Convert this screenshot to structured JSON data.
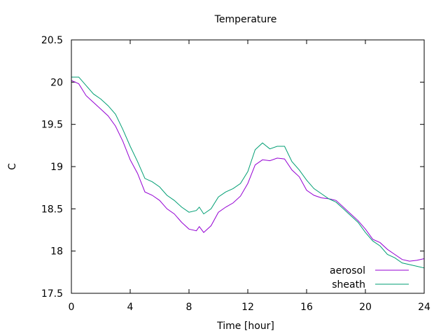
{
  "chart_data": {
    "type": "line",
    "title": "Temperature",
    "xlabel": "Time [hour]",
    "ylabel": "C",
    "xlim": [
      0,
      24
    ],
    "ylim": [
      17.5,
      20.5
    ],
    "xticks": [
      0,
      4,
      8,
      12,
      16,
      20,
      24
    ],
    "yticks": [
      17.5,
      18,
      18.5,
      19,
      19.5,
      20,
      20.5
    ],
    "xtick_labels": [
      "0",
      "4",
      "8",
      "12",
      "16",
      "20",
      "24"
    ],
    "ytick_labels": [
      "17.5",
      "18",
      "18.5",
      "19",
      "19.5",
      "20",
      "20.5"
    ],
    "grid": false,
    "legend": "bottom-right",
    "x": [
      0,
      0.5,
      1,
      1.5,
      2,
      2.5,
      3,
      3.5,
      4,
      4.5,
      5,
      5.5,
      6,
      6.5,
      7,
      7.5,
      8,
      8.5,
      8.7,
      9,
      9.5,
      10,
      10.5,
      11,
      11.5,
      12,
      12.5,
      13,
      13.5,
      14,
      14.5,
      15,
      15.5,
      16,
      16.5,
      17,
      17.5,
      18,
      18.5,
      19,
      19.5,
      20,
      20.5,
      21,
      21.5,
      22,
      22.5,
      23,
      23.5,
      24
    ],
    "series": [
      {
        "name": "aerosol",
        "color": "#9400d3",
        "values": [
          20.02,
          19.98,
          19.84,
          19.76,
          19.68,
          19.6,
          19.48,
          19.3,
          19.08,
          18.92,
          18.7,
          18.66,
          18.6,
          18.5,
          18.44,
          18.34,
          18.26,
          18.24,
          18.29,
          18.22,
          18.3,
          18.46,
          18.52,
          18.57,
          18.65,
          18.8,
          19.02,
          19.08,
          19.07,
          19.1,
          19.09,
          18.96,
          18.88,
          18.72,
          18.66,
          18.63,
          18.62,
          18.6,
          18.52,
          18.44,
          18.36,
          18.26,
          18.14,
          18.1,
          18.02,
          17.96,
          17.9,
          17.88,
          17.89,
          17.91
        ]
      },
      {
        "name": "sheath",
        "color": "#009e73",
        "values": [
          20.06,
          20.06,
          19.96,
          19.86,
          19.8,
          19.72,
          19.62,
          19.44,
          19.24,
          19.06,
          18.86,
          18.82,
          18.76,
          18.66,
          18.6,
          18.52,
          18.46,
          18.48,
          18.52,
          18.44,
          18.5,
          18.64,
          18.7,
          18.74,
          18.8,
          18.94,
          19.2,
          19.28,
          19.21,
          19.24,
          19.24,
          19.06,
          18.96,
          18.84,
          18.74,
          18.68,
          18.62,
          18.58,
          18.5,
          18.42,
          18.34,
          18.22,
          18.12,
          18.06,
          17.96,
          17.92,
          17.86,
          17.84,
          17.82,
          17.8
        ]
      }
    ]
  }
}
